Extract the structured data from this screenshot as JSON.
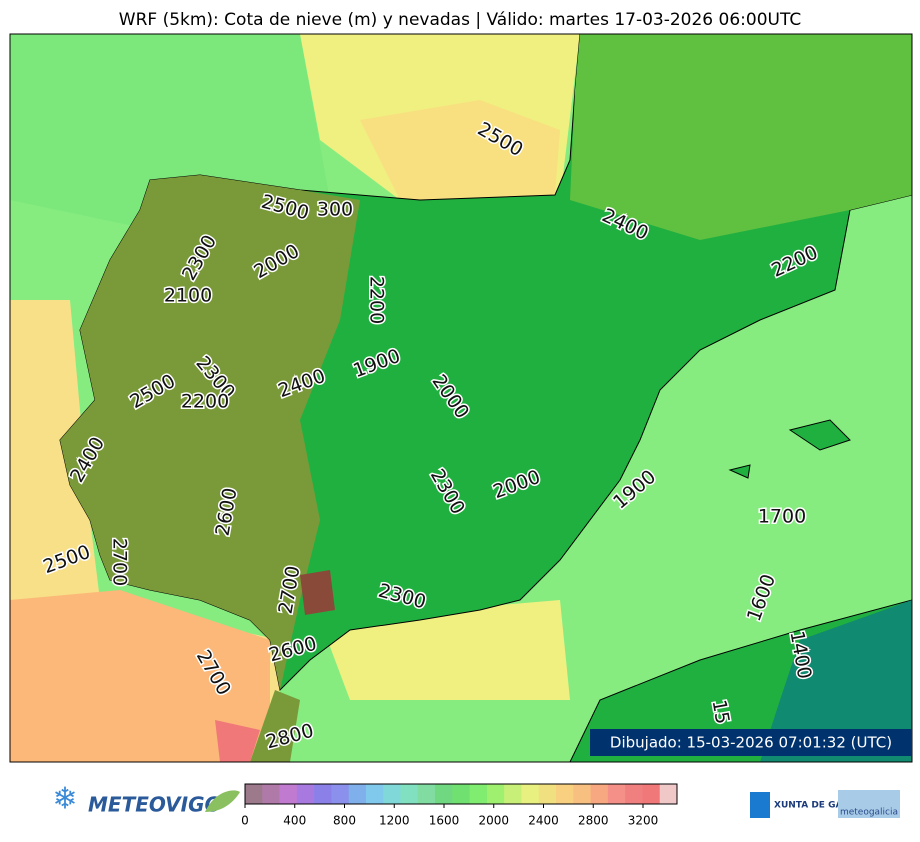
{
  "title": "WRF (5km): Cota de nieve (m) y nevadas | Válido: martes 17-03-2026 06:00UTC",
  "contour_labels": [
    "2500",
    "2500",
    "300",
    "2400",
    "2200",
    "2300",
    "2000",
    "2100",
    "2200",
    "1900",
    "2500",
    "2300",
    "2200",
    "2400",
    "2000",
    "2400",
    "2300",
    "2000",
    "1900",
    "1700",
    "2600",
    "2500",
    "2700",
    "2700",
    "2300",
    "1600",
    "1400",
    "2600",
    "2700",
    "2800",
    "15"
  ],
  "timestamp": "Dibujado: 15-03-2026 07:01:32 (UTC)",
  "colorbar": {
    "ticks": [
      0,
      400,
      800,
      1200,
      1600,
      2000,
      2400,
      2800,
      3200
    ],
    "colors": [
      "#9c7a8c",
      "#b07aa8",
      "#c07ad0",
      "#a87ae0",
      "#8a80e8",
      "#8a90ec",
      "#80b0ec",
      "#80c8ec",
      "#80d8d8",
      "#80e0c0",
      "#80dca0",
      "#70d880",
      "#70e070",
      "#80ec70",
      "#a0f070",
      "#c8f078",
      "#e8f080",
      "#f0e080",
      "#f8d080",
      "#f8c080",
      "#f8a880",
      "#f49088",
      "#f08080",
      "#f07878",
      "#f0c8c8"
    ]
  },
  "logos": {
    "left": "METEOVIGO",
    "xunta": "XUNTA DE GALICIA",
    "meteogalicia": "meteogalicia"
  }
}
